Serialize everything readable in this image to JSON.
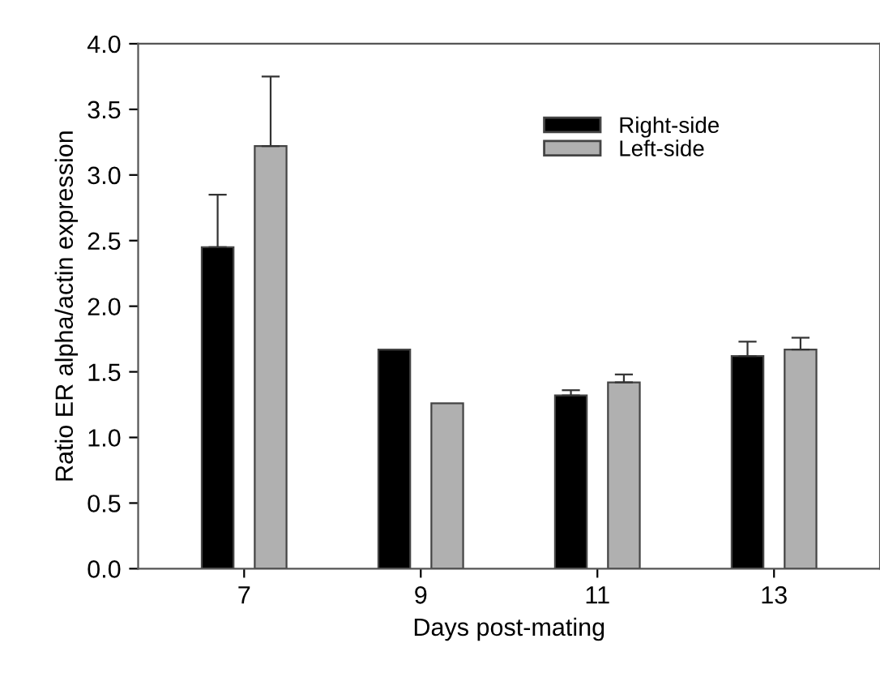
{
  "chart_data": {
    "type": "bar",
    "xlabel": "Days post-mating",
    "ylabel": "Ratio ER alpha/actin expression",
    "categories": [
      "7",
      "9",
      "11",
      "13"
    ],
    "series": [
      {
        "name": "Right-side",
        "color": "#000000",
        "values": [
          2.45,
          1.67,
          1.32,
          1.62
        ],
        "errors": [
          [
            2.45,
            2.85
          ],
          null,
          [
            1.32,
            1.36
          ],
          [
            1.62,
            1.73
          ]
        ]
      },
      {
        "name": "Left-side",
        "color": "#b0b0b0",
        "values": [
          3.22,
          1.26,
          1.42,
          1.67
        ],
        "errors": [
          [
            3.22,
            3.75
          ],
          null,
          [
            1.42,
            1.48
          ],
          [
            1.67,
            1.76
          ]
        ]
      }
    ],
    "ylim": [
      0,
      4.0
    ],
    "yticks": [
      {
        "value": 0,
        "label": "0.0"
      },
      {
        "value": 0.5,
        "label": "0.5"
      },
      {
        "value": 1,
        "label": "1.0"
      },
      {
        "value": 1.5,
        "label": "1.5"
      },
      {
        "value": 2,
        "label": "2.0"
      },
      {
        "value": 2.5,
        "label": "2.5"
      },
      {
        "value": 3,
        "label": "3.0"
      },
      {
        "value": 3.5,
        "label": "3.5"
      },
      {
        "value": 4,
        "label": "4.0"
      }
    ],
    "grid": false,
    "legend": "top right"
  }
}
